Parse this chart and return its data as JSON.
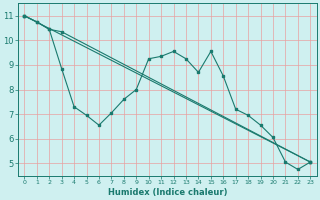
{
  "xlabel": "Humidex (Indice chaleur)",
  "bg_color": "#cff0f0",
  "grid_color": "#e8a0a0",
  "line_color": "#1a7a6e",
  "xlim": [
    -0.5,
    23.5
  ],
  "ylim": [
    4.5,
    11.5
  ],
  "xticks": [
    0,
    1,
    2,
    3,
    4,
    5,
    6,
    7,
    8,
    9,
    10,
    11,
    12,
    13,
    14,
    15,
    16,
    17,
    18,
    19,
    20,
    21,
    22,
    23
  ],
  "yticks": [
    5,
    6,
    7,
    8,
    9,
    10,
    11
  ],
  "line1_x": [
    0,
    1,
    2,
    3,
    4,
    5,
    6,
    7,
    8,
    9,
    10,
    11,
    12,
    13,
    14,
    15,
    16,
    17,
    18,
    19,
    20,
    21,
    22,
    23
  ],
  "line1_y": [
    11.0,
    10.75,
    10.45,
    8.85,
    7.3,
    6.95,
    6.55,
    7.05,
    7.6,
    8.0,
    9.25,
    9.35,
    9.55,
    9.25,
    8.7,
    9.55,
    8.55,
    7.2,
    6.95,
    6.55,
    6.05,
    5.05,
    4.75,
    5.05
  ],
  "line2_x": [
    0,
    1,
    2,
    3,
    23
  ],
  "line2_y": [
    11.0,
    10.75,
    10.45,
    10.35,
    5.05
  ],
  "line3_x": [
    0,
    23
  ],
  "line3_y": [
    11.0,
    5.05
  ]
}
